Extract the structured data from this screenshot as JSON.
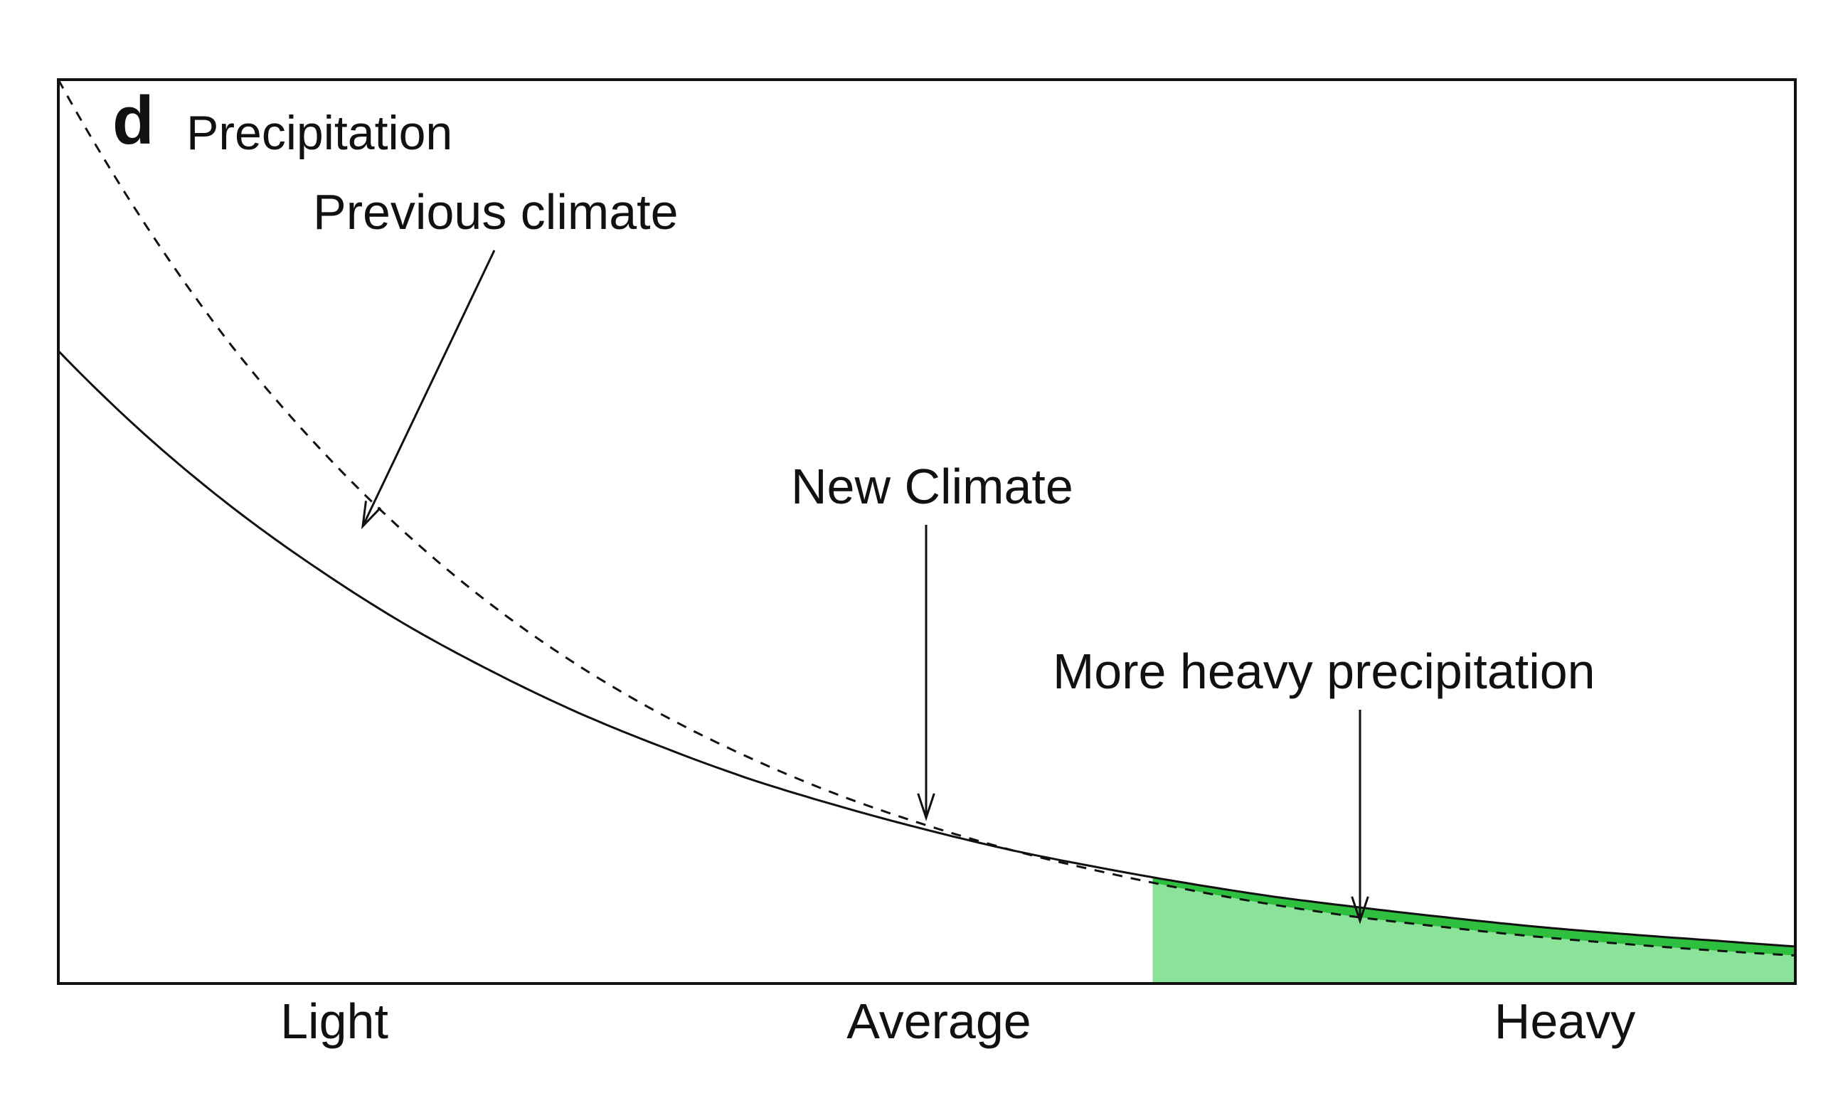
{
  "chart_data": {
    "type": "line",
    "panel_label": "d",
    "title": "Precipitation",
    "xlabel": "",
    "ylabel": "",
    "x_tick_labels": [
      "Light",
      "Average",
      "Heavy"
    ],
    "xlim": [
      0,
      10
    ],
    "ylim": [
      0,
      1
    ],
    "grid": false,
    "series": [
      {
        "key": "previous",
        "style": "dashed",
        "x": [
          0,
          0.5,
          1,
          1.5,
          2,
          2.5,
          3,
          3.5,
          4,
          4.5,
          5,
          5.5,
          6,
          6.5,
          7,
          7.5,
          8,
          8.5,
          9,
          9.5,
          10
        ],
        "y": [
          1.0,
          0.84,
          0.705,
          0.593,
          0.498,
          0.418,
          0.351,
          0.295,
          0.248,
          0.208,
          0.175,
          0.147,
          0.124,
          0.104,
          0.087,
          0.073,
          0.062,
          0.052,
          0.044,
          0.037,
          0.031
        ]
      },
      {
        "key": "new",
        "style": "solid",
        "x": [
          0,
          0.5,
          1,
          1.5,
          2,
          2.5,
          3,
          3.5,
          4,
          4.5,
          5,
          5.5,
          6,
          6.5,
          7,
          7.5,
          8,
          8.5,
          9,
          9.5,
          10
        ],
        "y": [
          0.7,
          0.607,
          0.527,
          0.458,
          0.397,
          0.345,
          0.299,
          0.26,
          0.225,
          0.196,
          0.17,
          0.147,
          0.128,
          0.111,
          0.096,
          0.084,
          0.073,
          0.063,
          0.055,
          0.048,
          0.041
        ]
      }
    ],
    "shaded_region": {
      "x_start": 6.3,
      "x_end": 10,
      "fill_under_previous": "#8be39a",
      "fill_between_curves": "#2fbf3f"
    },
    "annotations": [
      {
        "key": "previous",
        "text": "Previous climate"
      },
      {
        "key": "new",
        "text": "New Climate"
      },
      {
        "key": "heavy",
        "text": "More heavy precipitation"
      }
    ]
  }
}
